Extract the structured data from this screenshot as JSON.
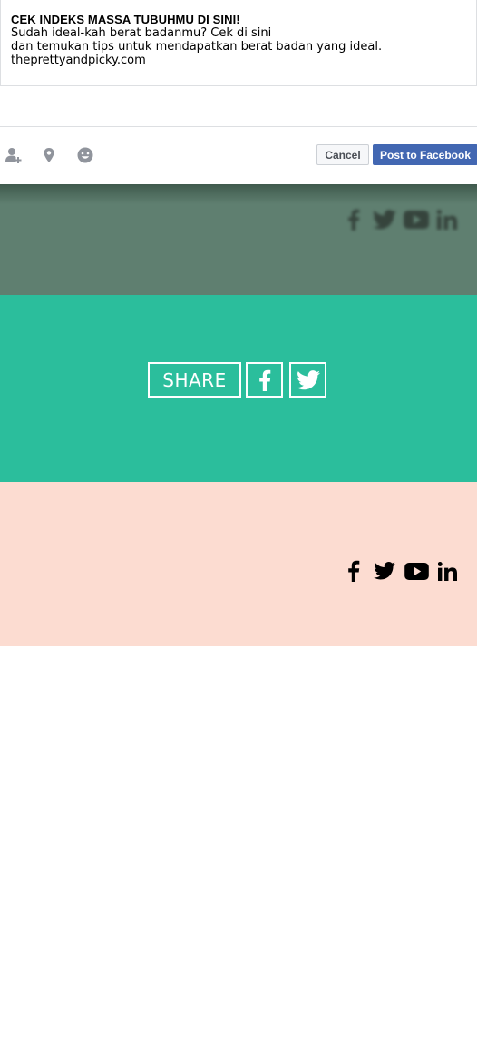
{
  "share_dialog": {
    "preview": {
      "title": "CEK INDEKS MASSA TUBUHMU DI SINI!",
      "description_line1": "Sudah ideal-kah berat badanmu? Cek di sini",
      "description_line2": "dan temukan tips untuk mendapatkan berat badan yang ideal.",
      "domain": "theprettyandpicky.com"
    },
    "toolbar": {
      "tag_friends_icon": "tag-friends-icon",
      "location_icon": "location-pin-icon",
      "feeling_icon": "smiley-icon",
      "cancel_label": "Cancel",
      "post_label": "Post to Facebook"
    },
    "colors": {
      "post_button": "#4267b2",
      "cancel_button": "#f6f7f9"
    }
  },
  "header_social": [
    "facebook-icon",
    "twitter-icon",
    "youtube-icon",
    "linkedin-icon"
  ],
  "share_band": {
    "label": "SHARE",
    "buttons": [
      "facebook-icon",
      "twitter-icon"
    ],
    "color": "#2bbe9c"
  },
  "footer": {
    "social": [
      "facebook-icon",
      "twitter-icon",
      "youtube-icon",
      "linkedin-icon"
    ],
    "color": "#fcdcd1"
  }
}
